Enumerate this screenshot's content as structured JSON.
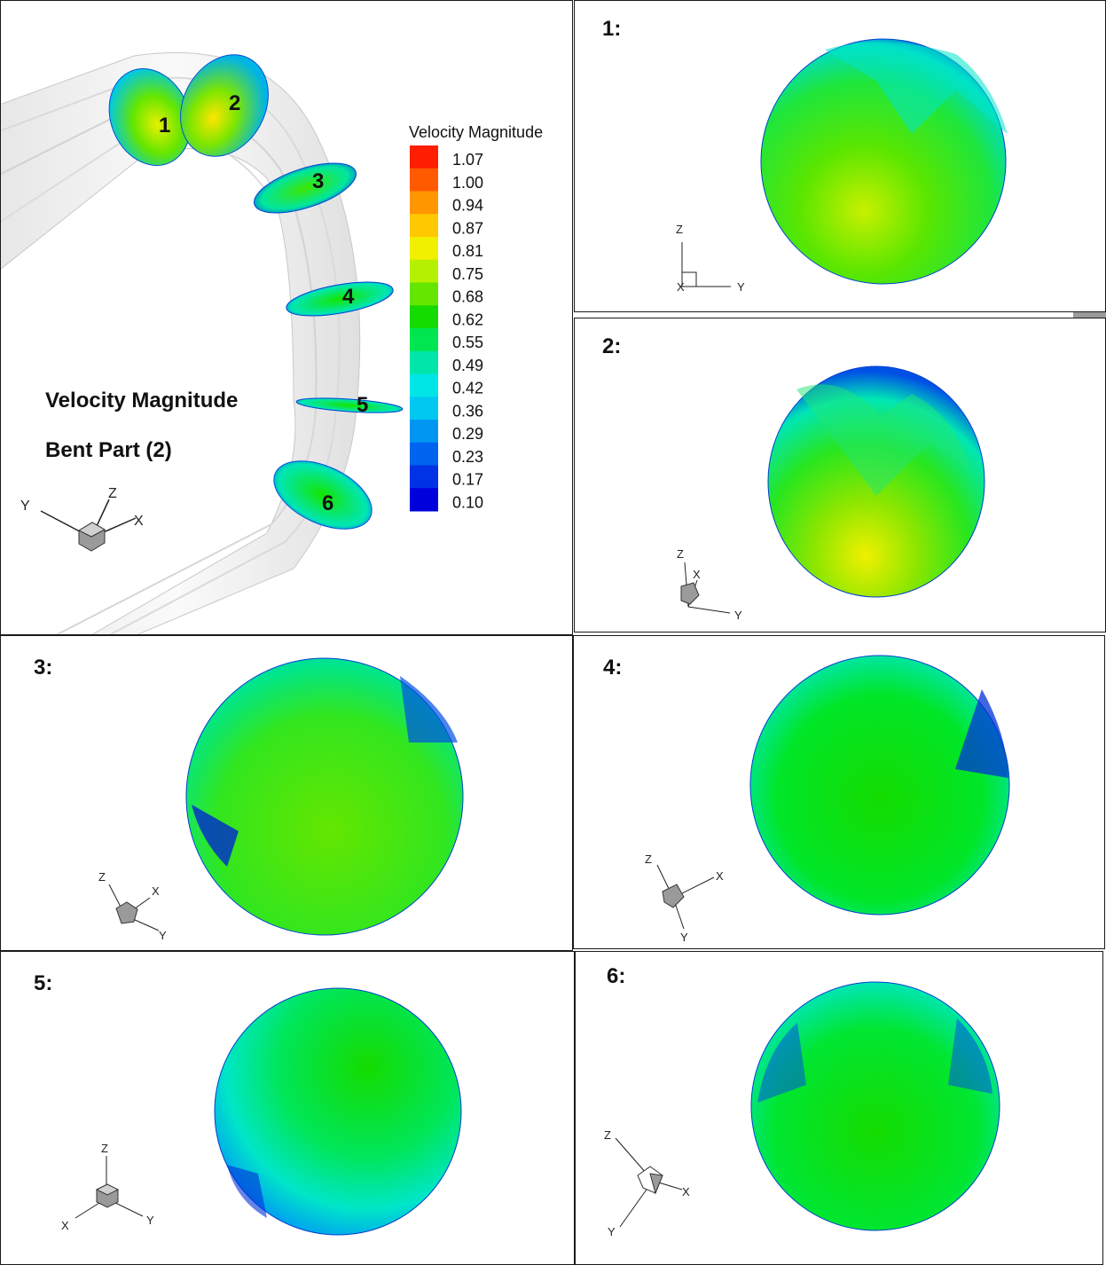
{
  "main": {
    "title": "Velocity Magnitude",
    "subtitle": "Bent Part (2)",
    "slice_labels": [
      "1",
      "2",
      "3",
      "4",
      "5",
      "6"
    ],
    "axes": {
      "x": "X",
      "y": "Y",
      "z": "Z"
    }
  },
  "legend": {
    "title": "Velocity Magnitude",
    "levels": [
      "1.07",
      "1.00",
      "0.94",
      "0.87",
      "0.81",
      "0.75",
      "0.68",
      "0.62",
      "0.55",
      "0.49",
      "0.42",
      "0.36",
      "0.29",
      "0.23",
      "0.17",
      "0.10"
    ],
    "colors": [
      "#ff1e00",
      "#ff5a00",
      "#ff9600",
      "#ffc800",
      "#f0f000",
      "#b4f000",
      "#64e600",
      "#14dc00",
      "#00e650",
      "#00e6aa",
      "#00e6e6",
      "#00c8f0",
      "#0096f0",
      "#0064f0",
      "#0032e6",
      "#0000dc"
    ]
  },
  "panels": [
    {
      "label": "1:",
      "axes": {
        "z": "Z",
        "y": "Y",
        "x": "X"
      }
    },
    {
      "label": "2:",
      "axes": {
        "z": "Z",
        "x": "X",
        "y": "Y"
      }
    },
    {
      "label": "3:",
      "axes": {
        "z": "Z",
        "x": "X",
        "y": "Y"
      }
    },
    {
      "label": "4:",
      "axes": {
        "z": "Z",
        "x": "X",
        "y": "Y"
      }
    },
    {
      "label": "5:",
      "axes": {
        "z": "Z",
        "x": "X",
        "y": "Y"
      }
    },
    {
      "label": "6:",
      "axes": {
        "z": "Z",
        "x": "X",
        "y": "Y"
      }
    }
  ]
}
